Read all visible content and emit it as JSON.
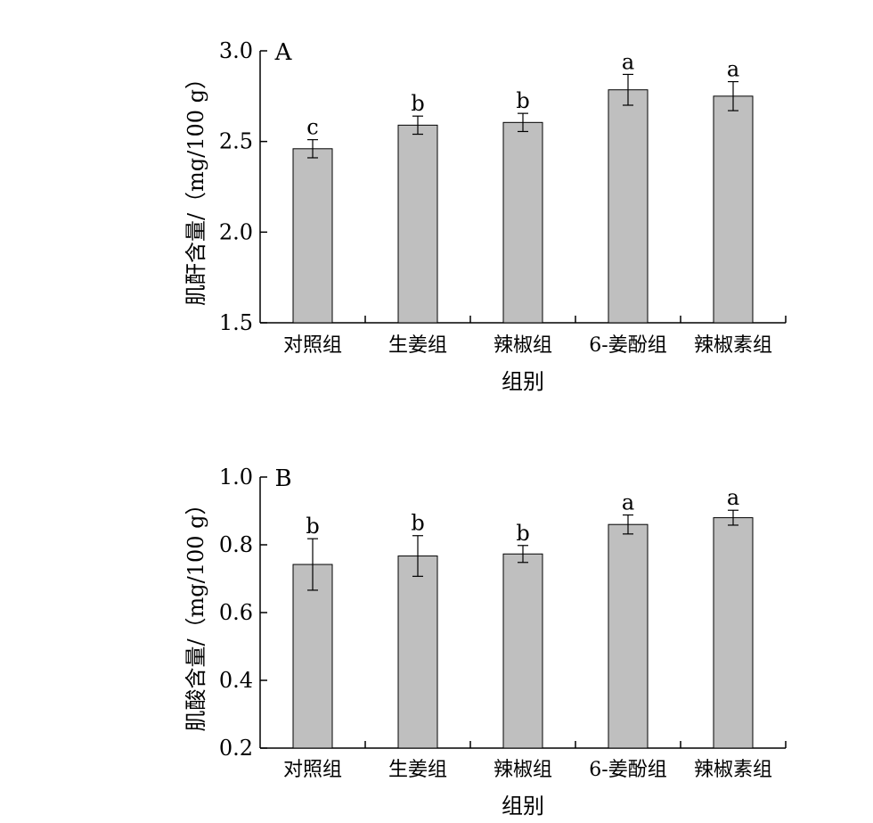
{
  "colors": {
    "bar_fill": "#bfbfbf",
    "bar_stroke": "#000000",
    "axis": "#000000"
  },
  "chart_data": [
    {
      "type": "bar",
      "panel_label": "A",
      "categories": [
        "对照组",
        "生姜组",
        "辣椒组",
        "6-姜酚组",
        "辣椒素组"
      ],
      "values": [
        2.46,
        2.59,
        2.605,
        2.785,
        2.75
      ],
      "errors": [
        0.05,
        0.05,
        0.05,
        0.085,
        0.08
      ],
      "significance": [
        "c",
        "b",
        "b",
        "a",
        "a"
      ],
      "xlabel": "组别",
      "ylabel": "肌酐含量/（mg/100 g）",
      "ylim": [
        1.5,
        3.0
      ],
      "yticks": [
        1.5,
        2.0,
        2.5,
        3.0
      ],
      "ytick_labels": [
        "1.5",
        "2.0",
        "2.5",
        "3.0"
      ],
      "grid": false
    },
    {
      "type": "bar",
      "panel_label": "B",
      "categories": [
        "对照组",
        "生姜组",
        "辣椒组",
        "6-姜酚组",
        "辣椒素组"
      ],
      "values": [
        0.742,
        0.767,
        0.773,
        0.86,
        0.88
      ],
      "errors": [
        0.076,
        0.06,
        0.025,
        0.028,
        0.022
      ],
      "significance": [
        "b",
        "b",
        "b",
        "a",
        "a"
      ],
      "xlabel": "组别",
      "ylabel": "肌酸含量/（mg/100 g）",
      "ylim": [
        0.2,
        1.0
      ],
      "yticks": [
        0.2,
        0.4,
        0.6,
        0.8,
        1.0
      ],
      "ytick_labels": [
        "0.2",
        "0.4",
        "0.6",
        "0.8",
        "1.0"
      ],
      "grid": false
    }
  ]
}
